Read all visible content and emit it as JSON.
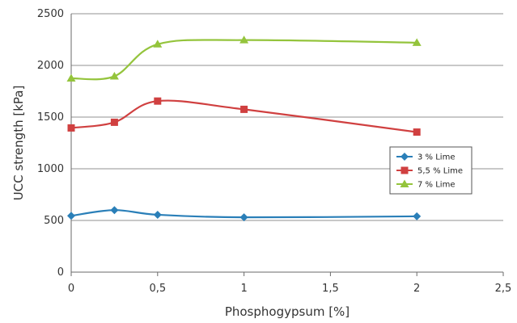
{
  "chart_data": {
    "type": "line",
    "title": "",
    "xlabel": "Phosphogypsum [%]",
    "ylabel": "UCC strength [kPa]",
    "xlim": [
      0,
      2.5
    ],
    "ylim": [
      0,
      2500
    ],
    "x_ticks": [
      "0",
      "0,5",
      "1",
      "1,5",
      "2",
      "2,5"
    ],
    "y_ticks": [
      "0",
      "500",
      "1000",
      "1500",
      "2000",
      "2500"
    ],
    "grid": "horizontal",
    "legend_position": "right",
    "x": [
      0,
      0.25,
      0.5,
      1,
      2
    ],
    "series": [
      {
        "name": "3 % Lime",
        "color": "#2a7fb8",
        "marker": "diamond",
        "values": [
          545,
          600,
          555,
          530,
          540
        ]
      },
      {
        "name": "5,5 % Lime",
        "color": "#d04040",
        "marker": "square",
        "values": [
          1395,
          1450,
          1655,
          1575,
          1355
        ]
      },
      {
        "name": "7 % Lime",
        "color": "#94c43c",
        "marker": "triangle",
        "values": [
          1875,
          1895,
          2205,
          2245,
          2220
        ]
      }
    ]
  }
}
